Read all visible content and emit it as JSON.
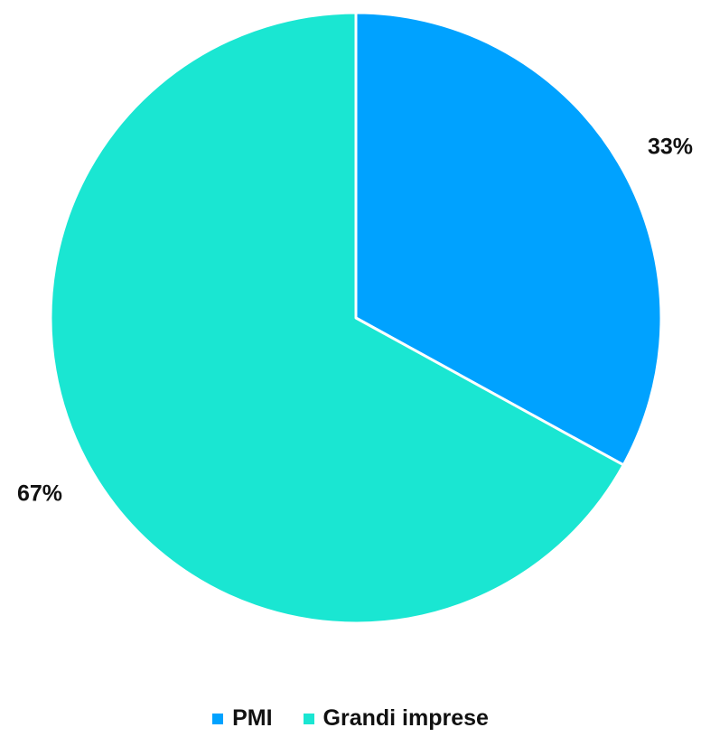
{
  "chart_data": {
    "type": "pie",
    "categories": [
      "PMI",
      "Grandi imprese"
    ],
    "values": [
      33,
      67
    ],
    "value_labels": [
      "33%",
      "67%"
    ],
    "colors": [
      "#00a2ff",
      "#1ae6d2"
    ],
    "start_angle": "12 o'clock",
    "direction": "clockwise",
    "legend_position": "bottom-center"
  }
}
